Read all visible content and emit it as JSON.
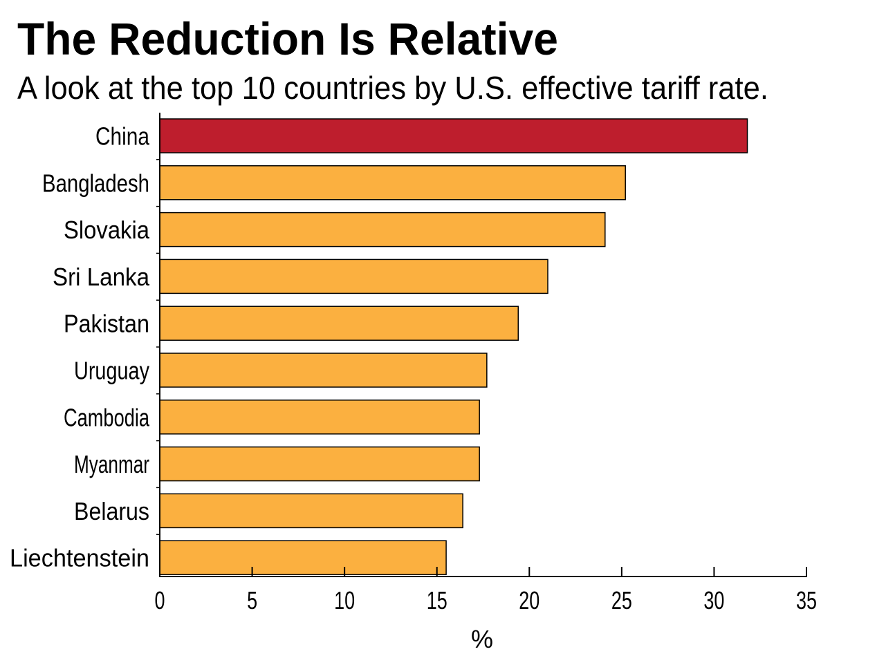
{
  "chart_data": {
    "type": "bar",
    "orientation": "horizontal",
    "title": "The Reduction Is Relative",
    "subtitle": "A look at the top 10 countries by U.S. effective tariff rate.",
    "categories": [
      "China",
      "Bangladesh",
      "Slovakia",
      "Sri Lanka",
      "Pakistan",
      "Uruguay",
      "Cambodia",
      "Myanmar",
      "Belarus",
      "Liechtenstein"
    ],
    "values": [
      31.8,
      25.2,
      24.1,
      21.0,
      19.4,
      17.7,
      17.3,
      17.3,
      16.4,
      15.5
    ],
    "highlight": "China",
    "colors": {
      "highlight": "#BE1E2D",
      "default": "#FBB040",
      "outline": "#000000"
    },
    "xlabel": "%",
    "ylabel": "",
    "xlim": [
      0,
      35
    ],
    "xticks": [
      "0",
      "5",
      "10",
      "15",
      "20",
      "25",
      "30",
      "35"
    ],
    "grid": false
  }
}
